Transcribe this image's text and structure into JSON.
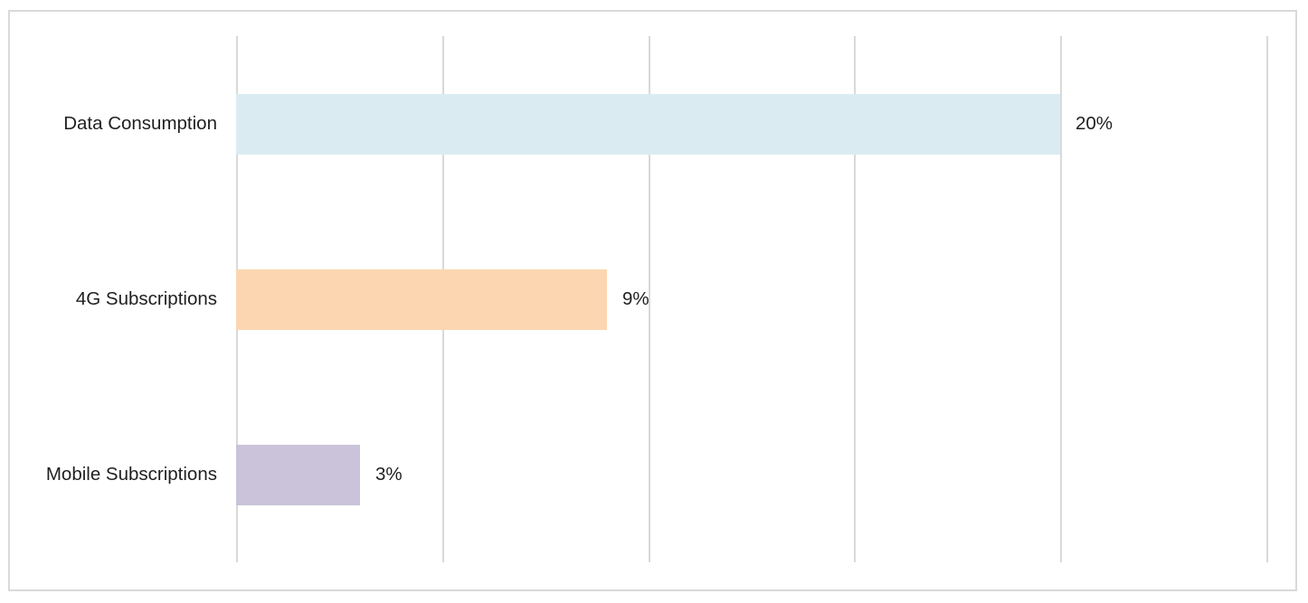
{
  "chart": {
    "background": "#ffffff",
    "frame_border_color": "#d9d9d9",
    "gridline_color": "#d9d9d9",
    "text_color": "#1f1f1f"
  },
  "chart_data": {
    "type": "bar",
    "orientation": "horizontal",
    "title": "",
    "xlabel": "",
    "ylabel": "",
    "categories": [
      "Data Consumption",
      "4G Subscriptions",
      "Mobile Subscriptions"
    ],
    "values": [
      20,
      9,
      3
    ],
    "value_labels": [
      "20%",
      "9%",
      "3%"
    ],
    "bar_colors": [
      "#daebf2",
      "#fcd6b1",
      "#cac3da"
    ],
    "xlim": [
      0,
      25
    ],
    "gridlines": [
      0,
      5,
      10,
      15,
      20,
      25
    ],
    "grid": true,
    "legend": false,
    "tick_labels_visible": false
  }
}
